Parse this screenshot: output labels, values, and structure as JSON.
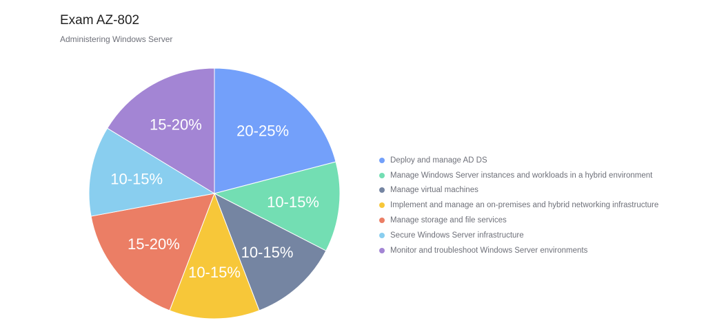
{
  "chart_data": {
    "type": "pie",
    "title": "Exam AZ-802",
    "subtitle": "Administering Windows Server",
    "legend_position": "right",
    "slices": [
      {
        "name": "Deploy and manage AD DS",
        "label": "20-25%",
        "value": 22.5,
        "color": "#73a0fa"
      },
      {
        "name": "Manage Windows Server instances and workloads in a hybrid environment",
        "label": "10-15%",
        "value": 12.5,
        "color": "#73deb3"
      },
      {
        "name": "Manage virtual machines",
        "label": "10-15%",
        "value": 12.5,
        "color": "#7585a2"
      },
      {
        "name": "Implement and manage an on-premises and hybrid networking infrastructure",
        "label": "10-15%",
        "value": 12.5,
        "color": "#f7c739"
      },
      {
        "name": "Manage storage and file services",
        "label": "15-20%",
        "value": 17.5,
        "color": "#eb7e65"
      },
      {
        "name": "Secure Windows Server infrastructure",
        "label": "10-15%",
        "value": 12.5,
        "color": "#89ceef"
      },
      {
        "name": "Monitor and troubleshoot Windows Server environments",
        "label": "15-20%",
        "value": 17.5,
        "color": "#a385d4"
      }
    ]
  }
}
